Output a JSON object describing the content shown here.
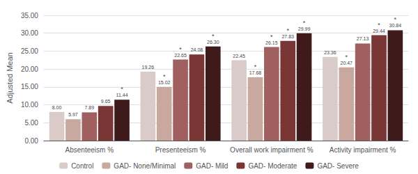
{
  "chart_data": {
    "type": "bar",
    "ylabel": "Adjusted Mean",
    "categories": [
      "Absenteeism %",
      "Presenteeism %",
      "Overall work impairment %",
      "Activity impairment %"
    ],
    "series": [
      {
        "name": "Control",
        "color": "#d9ccc8",
        "values": [
          8.0,
          19.26,
          22.45,
          23.36
        ],
        "value_labels": [
          "8.00",
          "19.26",
          "22.45",
          "23.36"
        ]
      },
      {
        "name": "GAD- None/Minimal",
        "color": "#c9a89f",
        "values": [
          5.97,
          15.02,
          17.68,
          20.47
        ],
        "value_labels": [
          "5.97",
          "15.02",
          "17.68",
          "20.47"
        ]
      },
      {
        "name": "GAD- Mild",
        "color": "#a06060",
        "values": [
          7.89,
          22.65,
          26.15,
          27.13
        ],
        "value_labels": [
          "7.89",
          "22.65",
          "26.15",
          "27.13"
        ]
      },
      {
        "name": "GAD- Moderate",
        "color": "#7a3535",
        "values": [
          9.65,
          24.08,
          27.83,
          29.44
        ],
        "value_labels": [
          "9.65",
          "24.08",
          "27.83",
          "29.44"
        ]
      },
      {
        "name": "GAD- Severe",
        "color": "#3e1a1a",
        "values": [
          11.44,
          26.3,
          29.99,
          30.84
        ],
        "value_labels": [
          "11.44",
          "26.30",
          "29.99",
          "30.84"
        ]
      }
    ],
    "annotations": [
      {
        "text": "*",
        "series": "GAD- Severe",
        "category": "Absenteeism %"
      },
      {
        "text": "*",
        "series": "GAD- None/Minimal",
        "category": "Presenteeism %"
      },
      {
        "text": "*",
        "series": "GAD- Mild",
        "category": "Presenteeism %"
      },
      {
        "text": "*",
        "series": "GAD- Severe",
        "category": "Presenteeism %"
      },
      {
        "text": "*",
        "series": "GAD- None/Minimal",
        "category": "Overall work impairment %"
      },
      {
        "text": "*",
        "series": "GAD- Mild",
        "category": "Overall work impairment %"
      },
      {
        "text": "*",
        "series": "GAD- Moderate",
        "category": "Overall work impairment %"
      },
      {
        "text": "*",
        "series": "GAD- Severe",
        "category": "Overall work impairment %"
      },
      {
        "text": "*",
        "series": "GAD- None/Minimal",
        "category": "Activity impairment %"
      },
      {
        "text": "*",
        "series": "GAD- Moderate",
        "category": "Activity impairment %"
      },
      {
        "text": "*",
        "series": "GAD- Severe",
        "category": "Activity impairment %"
      }
    ],
    "ylim": [
      0,
      35
    ],
    "yticks": [
      {
        "value": 0,
        "label": "0.00"
      },
      {
        "value": 5,
        "label": "5.00"
      },
      {
        "value": 10,
        "label": "10.00"
      },
      {
        "value": 15,
        "label": "15.00"
      },
      {
        "value": 20,
        "label": "20.00"
      },
      {
        "value": 25,
        "label": "25.00"
      },
      {
        "value": 30,
        "label": "30.00"
      },
      {
        "value": 35,
        "label": "35.00"
      }
    ],
    "grid": true,
    "data_labels": true,
    "legend": "bottom"
  }
}
